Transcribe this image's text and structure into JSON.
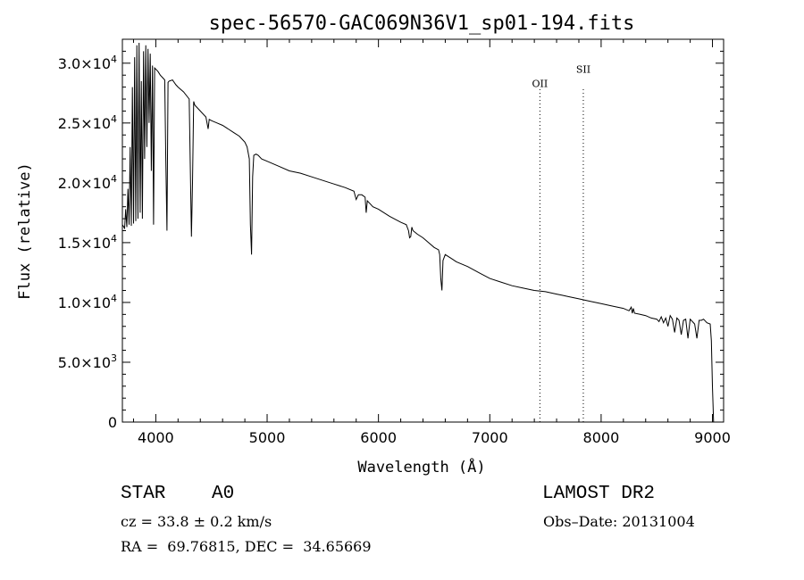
{
  "chart_data": {
    "type": "line",
    "title": "spec-56570-GAC069N36V1_sp01-194.fits",
    "xlabel": "Wavelength (Å)",
    "ylabel": "Flux (relative)",
    "xlim": [
      3700,
      9100
    ],
    "ylim": [
      0,
      32000
    ],
    "x_ticks": [
      4000,
      5000,
      6000,
      7000,
      8000,
      9000
    ],
    "x_tick_labels": [
      "4000",
      "5000",
      "6000",
      "7000",
      "8000",
      "9000"
    ],
    "y_ticks": [
      0,
      5000,
      10000,
      15000,
      20000,
      25000,
      30000
    ],
    "y_tick_labels": [
      {
        "mantissa": "0",
        "exp": ""
      },
      {
        "mantissa": "5.0×10",
        "exp": "3"
      },
      {
        "mantissa": "1.0×10",
        "exp": "4"
      },
      {
        "mantissa": "1.5×10",
        "exp": "4"
      },
      {
        "mantissa": "2.0×10",
        "exp": "4"
      },
      {
        "mantissa": "2.5×10",
        "exp": "4"
      },
      {
        "mantissa": "3.0×10",
        "exp": "4"
      }
    ],
    "grid": false,
    "line_labels": [
      {
        "label": "OII",
        "x": 7450,
        "label_y": 28000
      },
      {
        "label": "SII",
        "x": 7840,
        "label_y": 29200
      }
    ],
    "series": [
      {
        "x": [
          3700,
          3720,
          3730,
          3740,
          3750,
          3760,
          3770,
          3780,
          3790,
          3800,
          3810,
          3820,
          3830,
          3840,
          3850,
          3860,
          3870,
          3880,
          3890,
          3900,
          3910,
          3920,
          3930,
          3940,
          3950,
          3960,
          3970,
          3980,
          3990,
          4000,
          4020,
          4040,
          4060,
          4080,
          4090,
          4100,
          4110,
          4120,
          4150,
          4180,
          4200,
          4250,
          4300,
          4320,
          4330,
          4340,
          4350,
          4360,
          4400,
          4450,
          4470,
          4480,
          4500,
          4550,
          4600,
          4650,
          4700,
          4750,
          4780,
          4800,
          4820,
          4840,
          4850,
          4860,
          4870,
          4880,
          4900,
          4920,
          4950,
          5000,
          5100,
          5200,
          5300,
          5400,
          5500,
          5600,
          5700,
          5780,
          5800,
          5820,
          5850,
          5880,
          5890,
          5900,
          5910,
          5950,
          6000,
          6100,
          6200,
          6250,
          6270,
          6280,
          6290,
          6300,
          6310,
          6350,
          6400,
          6450,
          6500,
          6540,
          6550,
          6560,
          6570,
          6580,
          6600,
          6650,
          6700,
          6800,
          6900,
          7000,
          7100,
          7200,
          7300,
          7400,
          7500,
          7600,
          7650,
          7700,
          7800,
          7900,
          8000,
          8100,
          8200,
          8250,
          8270,
          8280,
          8290,
          8300,
          8350,
          8400,
          8450,
          8500,
          8520,
          8540,
          8560,
          8580,
          8600,
          8620,
          8640,
          8660,
          8680,
          8700,
          8720,
          8740,
          8760,
          8780,
          8800,
          8820,
          8840,
          8860,
          8880,
          8900,
          8920,
          8950,
          8980,
          8990,
          9000,
          9010
        ],
        "y": [
          16500,
          16200,
          17800,
          16300,
          19500,
          16500,
          23000,
          16400,
          28000,
          16600,
          30500,
          16800,
          31500,
          17000,
          31700,
          17500,
          28500,
          17000,
          31000,
          22000,
          31500,
          23000,
          31200,
          25000,
          30800,
          21000,
          29800,
          16500,
          29600,
          29500,
          29300,
          29000,
          28800,
          28600,
          22000,
          16000,
          28400,
          28500,
          28600,
          28200,
          28000,
          27600,
          27000,
          15500,
          20000,
          26800,
          26500,
          26400,
          26000,
          25500,
          24500,
          25300,
          25200,
          25000,
          24800,
          24500,
          24200,
          23900,
          23600,
          23400,
          23000,
          22000,
          16500,
          14000,
          20500,
          22300,
          22400,
          22300,
          22000,
          21800,
          21400,
          21000,
          20800,
          20500,
          20200,
          19900,
          19600,
          19300,
          18600,
          19000,
          19000,
          18800,
          17500,
          18500,
          18400,
          18000,
          17800,
          17200,
          16700,
          16500,
          16000,
          15400,
          15500,
          16300,
          16000,
          15700,
          15400,
          15000,
          14600,
          14400,
          14000,
          12000,
          11000,
          13500,
          14000,
          13700,
          13400,
          13000,
          12500,
          12000,
          11700,
          11400,
          11200,
          11000,
          10900,
          10700,
          10600,
          10500,
          10300,
          10100,
          9900,
          9700,
          9500,
          9300,
          9600,
          9100,
          9500,
          9100,
          9000,
          8900,
          8700,
          8600,
          8400,
          8800,
          8300,
          8700,
          8000,
          8900,
          8600,
          7500,
          8700,
          8500,
          7300,
          8500,
          8600,
          7000,
          8600,
          8400,
          8200,
          7000,
          8500,
          8500,
          8600,
          8300,
          8200,
          6800,
          3000,
          0
        ]
      }
    ]
  },
  "info": {
    "object_type": "STAR",
    "subclass": "A0",
    "survey": "LAMOST DR2",
    "velocity": "cz = 33.8 ± 0.2 km/s",
    "obs_date": "Obs–Date: 20131004",
    "coords": "RA =  69.76815, DEC =  34.65669"
  }
}
